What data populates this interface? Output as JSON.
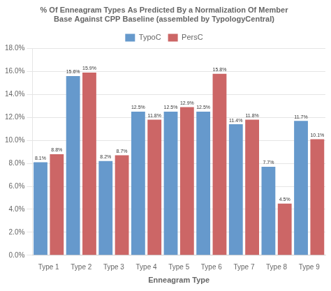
{
  "chart_data": {
    "type": "bar",
    "title": [
      "% Of Enneagram Types As Predicted By a Normalization Of Member",
      "Base Against CPP Baseline (assembled by TypologyCentral)"
    ],
    "x_label": "Enneagram Type",
    "categories": [
      "Type 1",
      "Type 2",
      "Type 3",
      "Type 4",
      "Type 5",
      "Type 6",
      "Type 7",
      "Type 8",
      "Type 9"
    ],
    "series": [
      {
        "name": "TypoC",
        "color": "#6699CC",
        "values": [
          8.1,
          15.6,
          8.2,
          12.5,
          12.5,
          12.5,
          11.4,
          7.7,
          11.7
        ],
        "value_labels": [
          "8.1%",
          "15.6%",
          "8.2%",
          "12.5%",
          "12.5%",
          "12.5%",
          "11.4%",
          "7.7%",
          "11.7%"
        ]
      },
      {
        "name": "PersC",
        "color": "#CC6666",
        "values": [
          8.8,
          15.9,
          8.7,
          11.8,
          12.9,
          15.8,
          11.8,
          4.5,
          10.1
        ],
        "value_labels": [
          "8.8%",
          "15.9%",
          "8.7%",
          "11.8%",
          "12.9%",
          "15.8%",
          "11.8%",
          "4.5%",
          "10.1%"
        ]
      }
    ],
    "ylim": [
      0,
      18
    ],
    "yticks": [
      {
        "value": 0,
        "label": "0.0%"
      },
      {
        "value": 2,
        "label": "2.0%"
      },
      {
        "value": 4,
        "label": "4.0%"
      },
      {
        "value": 6,
        "label": "6.0%"
      },
      {
        "value": 8,
        "label": "8.0%"
      },
      {
        "value": 10,
        "label": "10.0%"
      },
      {
        "value": 12,
        "label": "12.0%"
      },
      {
        "value": 14,
        "label": "14.0%"
      },
      {
        "value": 16,
        "label": "16.0%"
      },
      {
        "value": 18,
        "label": "18.0%"
      }
    ],
    "grid": true,
    "legend": "top",
    "data_labels": true
  }
}
